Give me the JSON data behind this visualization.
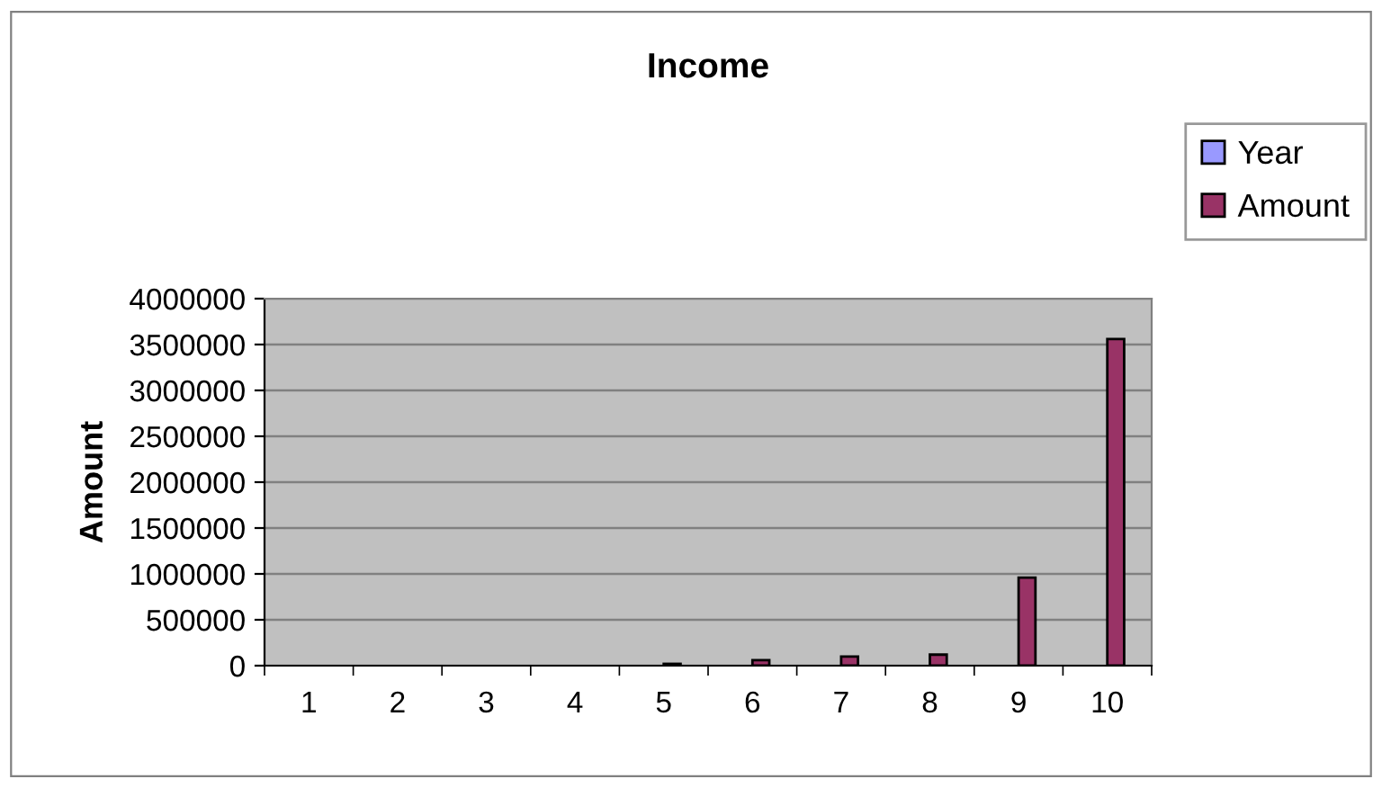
{
  "chart_data": {
    "type": "bar",
    "title": "Income",
    "ylabel": "Amount",
    "categories": [
      "1",
      "2",
      "3",
      "4",
      "5",
      "6",
      "7",
      "8",
      "9",
      "10"
    ],
    "series": [
      {
        "name": "Year",
        "color": "#9999ff",
        "values": [
          null,
          null,
          null,
          null,
          null,
          null,
          null,
          null,
          null,
          null
        ]
      },
      {
        "name": "Amount",
        "color": "#993366",
        "values": [
          null,
          null,
          null,
          null,
          20000,
          60000,
          100000,
          120000,
          960000,
          3560000
        ]
      }
    ],
    "ylim": [
      0,
      4000000
    ],
    "yticks": [
      0,
      500000,
      1000000,
      1500000,
      2000000,
      2500000,
      3000000,
      3500000,
      4000000
    ],
    "grid": "y",
    "legend": "right"
  }
}
